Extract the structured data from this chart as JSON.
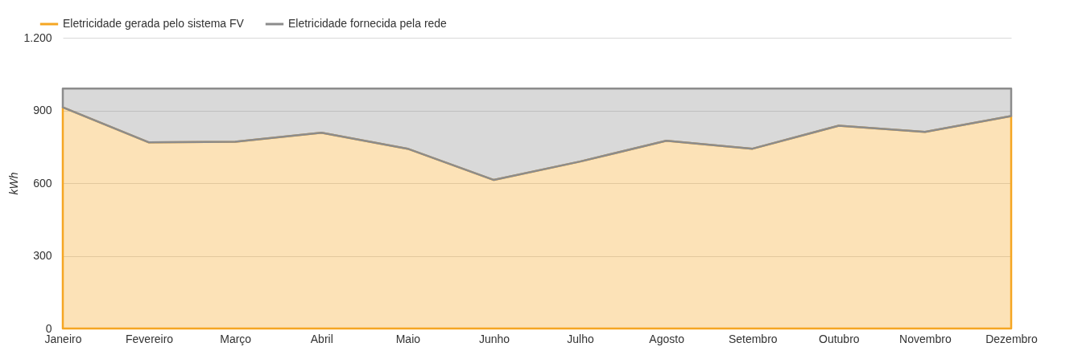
{
  "chart_data": {
    "type": "area",
    "stacked": true,
    "ylabel": "kWh",
    "categories": [
      "Janeiro",
      "Fevereiro",
      "Março",
      "Abril",
      "Maio",
      "Junho",
      "Julho",
      "Agosto",
      "Setembro",
      "Outubro",
      "Novembro",
      "Dezembro"
    ],
    "series": [
      {
        "name": "Eletricidade gerada pelo sistema FV",
        "color": "#f5a623",
        "values": [
          913,
          768,
          771,
          808,
          742,
          613,
          689,
          775,
          742,
          837,
          811,
          877
        ]
      },
      {
        "name": "Eletricidade fornecida pela rede",
        "color": "#8c8c8c",
        "values": [
          77,
          222,
          219,
          182,
          248,
          377,
          301,
          215,
          248,
          153,
          179,
          113
        ]
      }
    ],
    "ylim": [
      0,
      1200
    ],
    "yticks": [
      0,
      300,
      600,
      900,
      {
        "value": 1200,
        "label": "1.200"
      }
    ],
    "grid": "y",
    "legend": "top left"
  }
}
